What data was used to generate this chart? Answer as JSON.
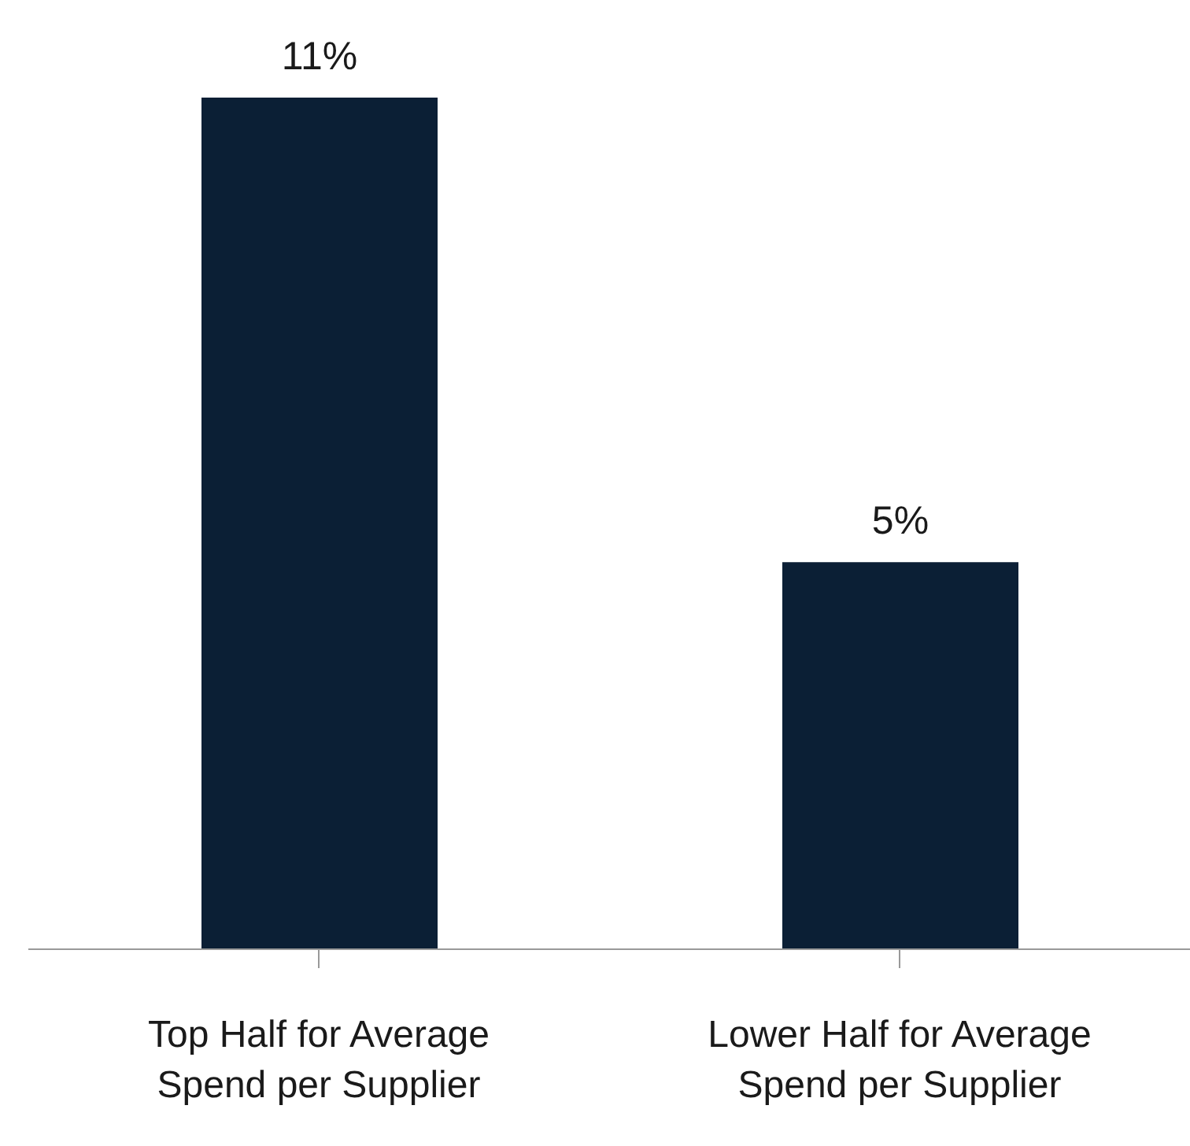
{
  "chart_data": {
    "type": "bar",
    "categories": [
      "Top Half for Average Spend per Supplier",
      "Lower Half for Average Spend per Supplier"
    ],
    "values": [
      11,
      5
    ],
    "value_labels": [
      "11%",
      "5%"
    ],
    "color": "#0b1f35",
    "grid": false,
    "legend": false
  }
}
